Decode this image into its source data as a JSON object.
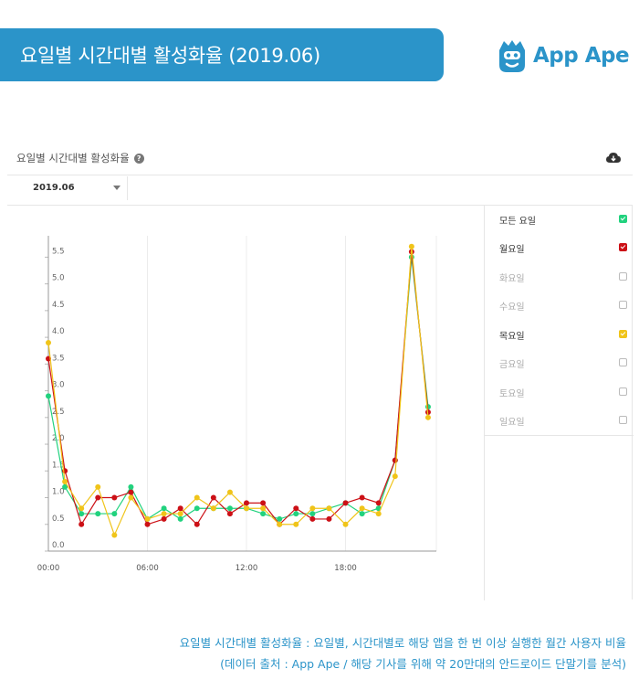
{
  "banner": {
    "title": "요일별 시간대별 활성화율 (2019.06)"
  },
  "brand": {
    "name": "App Ape",
    "color": "#2b94c9"
  },
  "widget": {
    "title": "요일별 시간대별 활성화율",
    "help_icon": "question-circle-icon",
    "download_icon": "cloud-download-icon",
    "period_select": {
      "value": "2019.06"
    }
  },
  "legend": {
    "items": [
      {
        "label": "모든 요일",
        "checked": true,
        "color": "#21d27e"
      },
      {
        "label": "월요일",
        "checked": true,
        "color": "#cc1016"
      },
      {
        "label": "화요일",
        "checked": false,
        "color": "#999999"
      },
      {
        "label": "수요일",
        "checked": false,
        "color": "#999999"
      },
      {
        "label": "목요일",
        "checked": true,
        "color": "#f0c419"
      },
      {
        "label": "금요일",
        "checked": false,
        "color": "#999999"
      },
      {
        "label": "토요일",
        "checked": false,
        "color": "#999999"
      },
      {
        "label": "일요일",
        "checked": false,
        "color": "#999999"
      }
    ]
  },
  "chart_data": {
    "type": "line",
    "x": [
      0,
      1,
      2,
      3,
      4,
      5,
      6,
      7,
      8,
      9,
      10,
      11,
      12,
      13,
      14,
      15,
      16,
      17,
      18,
      19,
      20,
      21,
      22,
      23
    ],
    "x_tick_positions": [
      0,
      6,
      12,
      18
    ],
    "x_tick_labels": [
      "00:00",
      "06:00",
      "12:00",
      "18:00"
    ],
    "y_ticks": [
      0.0,
      0.5,
      1.0,
      1.5,
      2.0,
      2.5,
      3.0,
      3.5,
      4.0,
      4.5,
      5.0,
      5.5
    ],
    "y_tick_labels": [
      "0.0",
      "0.5",
      "1.0",
      "1.5",
      "2.0",
      "2.5",
      "3.0",
      "3.5",
      "4.0",
      "4.5",
      "5.0",
      "5.5"
    ],
    "ylim": [
      0,
      5.9
    ],
    "xlim": [
      0,
      23.5
    ],
    "grid": true,
    "series": [
      {
        "name": "모든 요일",
        "color": "#21d27e",
        "values": [
          2.9,
          1.2,
          0.7,
          0.7,
          0.7,
          1.2,
          0.6,
          0.8,
          0.6,
          0.8,
          0.8,
          0.8,
          0.8,
          0.7,
          0.6,
          0.7,
          0.7,
          0.8,
          0.9,
          0.7,
          0.8,
          1.7,
          5.5,
          2.7
        ]
      },
      {
        "name": "월요일",
        "color": "#cc1016",
        "values": [
          3.6,
          1.5,
          0.5,
          1.0,
          1.0,
          1.1,
          0.5,
          0.6,
          0.8,
          0.5,
          1.0,
          0.7,
          0.9,
          0.9,
          0.5,
          0.8,
          0.6,
          0.6,
          0.9,
          1.0,
          0.9,
          1.7,
          5.6,
          2.6
        ]
      },
      {
        "name": "목요일",
        "color": "#f0c419",
        "values": [
          3.9,
          1.3,
          0.8,
          1.2,
          0.3,
          1.0,
          0.6,
          0.7,
          0.7,
          1.0,
          0.8,
          1.1,
          0.8,
          0.8,
          0.5,
          0.5,
          0.8,
          0.8,
          0.5,
          0.8,
          0.7,
          1.4,
          5.7,
          2.5
        ]
      }
    ]
  },
  "footnote": {
    "line1": "요일별 시간대별 활성화율 : 요일별, 시간대별로 해당 앱을 한 번 이상 실행한 월간 사용자 비율",
    "line2": "(데이터 출처 : App Ape / 해당 기사를 위해 약 20만대의 안드로이드 단말기를 분석)"
  }
}
